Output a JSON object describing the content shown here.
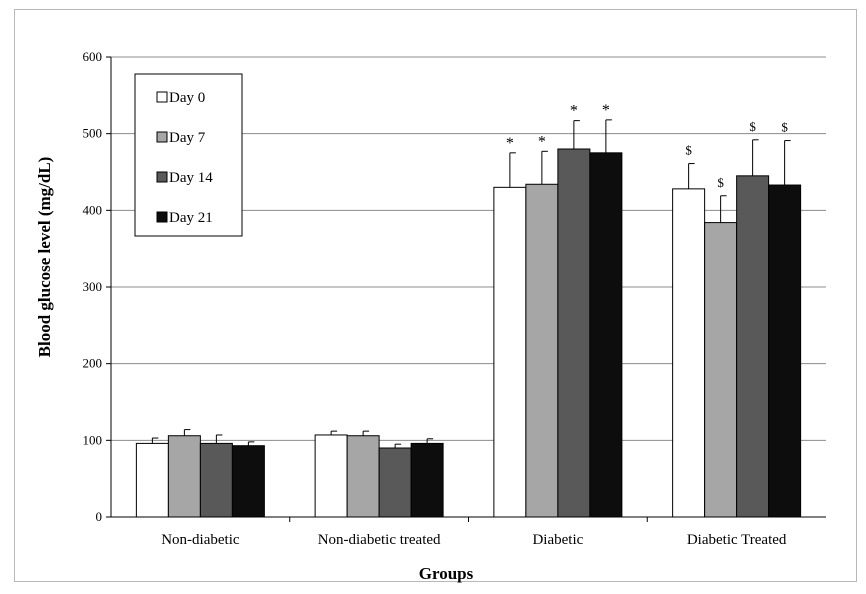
{
  "chart_data": {
    "type": "bar",
    "xlabel": "Groups",
    "ylabel": "Blood glucose level (mg/dL)",
    "ylim": [
      0,
      600
    ],
    "yticks": [
      "0",
      "100",
      "200",
      "300",
      "400",
      "500",
      "600"
    ],
    "grid": true,
    "legend_position": "top-left",
    "categories": [
      "Non-diabetic",
      "Non-diabetic treated",
      "Diabetic",
      "Diabetic Treated"
    ],
    "series": [
      {
        "name": "Day 0",
        "color": "#ffffff",
        "values": [
          96,
          107,
          430,
          428
        ],
        "errors": [
          7,
          5,
          45,
          33
        ],
        "annotations": [
          "",
          "",
          "*",
          "$"
        ]
      },
      {
        "name": "Day 7",
        "color": "#a6a6a6",
        "values": [
          106,
          106,
          434,
          384
        ],
        "errors": [
          8,
          6,
          43,
          35
        ],
        "annotations": [
          "",
          "",
          "*",
          "$"
        ]
      },
      {
        "name": "Day 14",
        "color": "#595959",
        "values": [
          96,
          90,
          480,
          445
        ],
        "errors": [
          11,
          5,
          37,
          47
        ],
        "annotations": [
          "",
          "",
          "*",
          "$"
        ]
      },
      {
        "name": "Day 21",
        "color": "#0d0d0d",
        "values": [
          93,
          96,
          475,
          433
        ],
        "errors": [
          5,
          6,
          43,
          58
        ],
        "annotations": [
          "",
          "",
          "*",
          "$"
        ]
      }
    ]
  }
}
